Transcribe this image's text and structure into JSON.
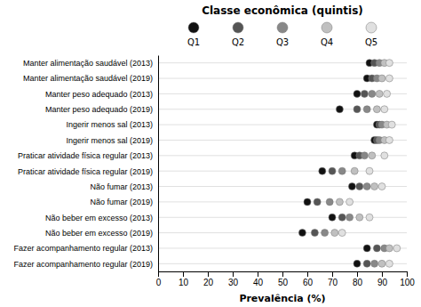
{
  "chart_data": {
    "type": "dot",
    "title": "Classe econômica (quintis)",
    "x_label": "Prevalência (%)",
    "orientation": "horizontal",
    "grid": true,
    "legend": "top",
    "categories": [
      "Manter alimentação saudável (2013)",
      "Manter alimentação saudável (2019)",
      "Manter peso adequado (2013)",
      "Manter peso adequado (2019)",
      "Ingerir menos sal (2013)",
      "Ingerir menos sal (2019)",
      "Praticar atividade física regular (2013)",
      "Praticar atividade física regular (2019)",
      "Não fumar (2013)",
      "Não fumar (2019)",
      "Não beber em excesso (2013)",
      "Não beber em excesso (2019)",
      "Fazer acompanhamento regular (2013)",
      "Fazer acompanhamento regular (2019)"
    ],
    "series": [
      {
        "name": "Q1",
        "color": "#111111",
        "values": [
          85,
          84,
          80,
          73,
          88,
          87,
          79,
          66,
          78,
          60,
          70,
          58,
          84,
          80
        ]
      },
      {
        "name": "Q2",
        "color": "#555555",
        "values": [
          87,
          86,
          83,
          80,
          89,
          88,
          81,
          70,
          81,
          64,
          74,
          63,
          88,
          84
        ]
      },
      {
        "name": "Q3",
        "color": "#888888",
        "values": [
          89,
          88,
          86,
          84,
          90,
          89,
          83,
          74,
          84,
          69,
          77,
          67,
          91,
          87
        ]
      },
      {
        "name": "Q4",
        "color": "#c0c0c0",
        "values": [
          91,
          90,
          89,
          88,
          92,
          91,
          86,
          79,
          87,
          73,
          81,
          71,
          93,
          90
        ]
      },
      {
        "name": "Q5",
        "color": "#e0e0e0",
        "values": [
          93,
          93,
          92,
          91,
          94,
          93,
          91,
          85,
          90,
          77,
          85,
          74,
          96,
          93
        ]
      }
    ],
    "xlim": [
      0,
      100
    ],
    "xticks": [
      0,
      10,
      20,
      30,
      40,
      50,
      60,
      70,
      80,
      90,
      100
    ]
  }
}
